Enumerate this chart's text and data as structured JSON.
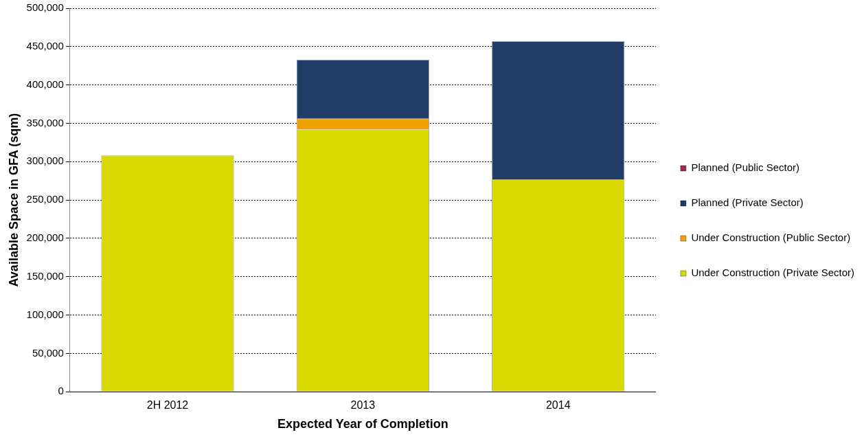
{
  "chart_data": {
    "type": "bar",
    "stacked": true,
    "categories": [
      "2H 2012",
      "2013",
      "2014"
    ],
    "series": [
      {
        "name": "Under Construction (Private Sector)",
        "color": "#d9d900",
        "values": [
          308000,
          342000,
          277000
        ]
      },
      {
        "name": "Under Construction (Public Sector)",
        "color": "#f0a000",
        "values": [
          0,
          14000,
          0
        ]
      },
      {
        "name": "Planned (Private Sector)",
        "color": "#1f3d66",
        "values": [
          0,
          77000,
          180000
        ]
      },
      {
        "name": "Planned (Public Sector)",
        "color": "#9c2a5a",
        "values": [
          0,
          0,
          0
        ]
      }
    ],
    "xlabel": "Expected Year of Completion",
    "ylabel": "Available Space in GFA (sqm)",
    "ylim": [
      0,
      500000
    ],
    "yticks": [
      0,
      {
        "value": 50000,
        "label": "50,000"
      },
      {
        "value": 100000,
        "label": "100,000"
      },
      {
        "value": 150000,
        "label": "150,000"
      },
      {
        "value": 200000,
        "label": "200,000"
      },
      {
        "value": 250000,
        "label": "250,000"
      },
      {
        "value": 300000,
        "label": "300,000"
      },
      {
        "value": 350000,
        "label": "350,000"
      },
      {
        "value": 400000,
        "label": "400,000"
      },
      {
        "value": 450000,
        "label": "450,000"
      },
      {
        "value": 500000,
        "label": "500,000"
      }
    ],
    "grid": "y",
    "legend": "right"
  }
}
